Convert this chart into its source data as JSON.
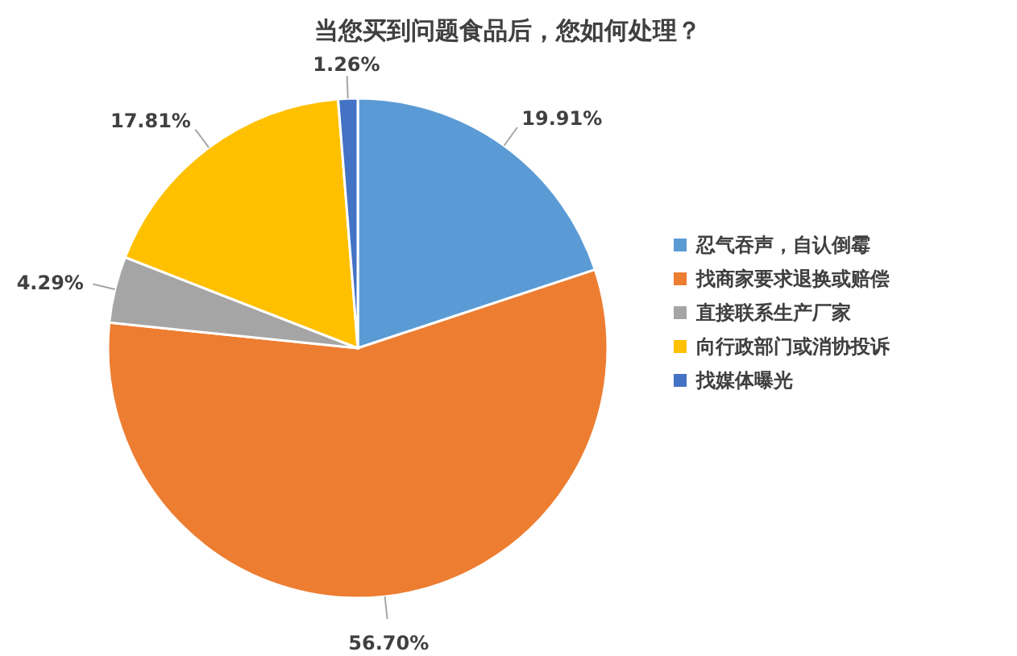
{
  "chart_data": {
    "type": "pie",
    "title": "当您买到问题食品后，您如何处理？",
    "categories": [
      "忍气吞声，自认倒霉",
      "找商家要求退换或赔偿",
      "直接联系生产厂家",
      "向行政部门或消协投诉",
      "找媒体曝光"
    ],
    "values": [
      19.91,
      56.7,
      4.29,
      17.81,
      1.26
    ],
    "colors": [
      "#5b9bd5",
      "#ed7d31",
      "#a5a5a5",
      "#ffc000",
      "#4472c4"
    ],
    "value_labels": [
      "19.91%",
      "56.70%",
      "4.29%",
      "17.81%",
      "1.26%"
    ],
    "legend": "right"
  }
}
